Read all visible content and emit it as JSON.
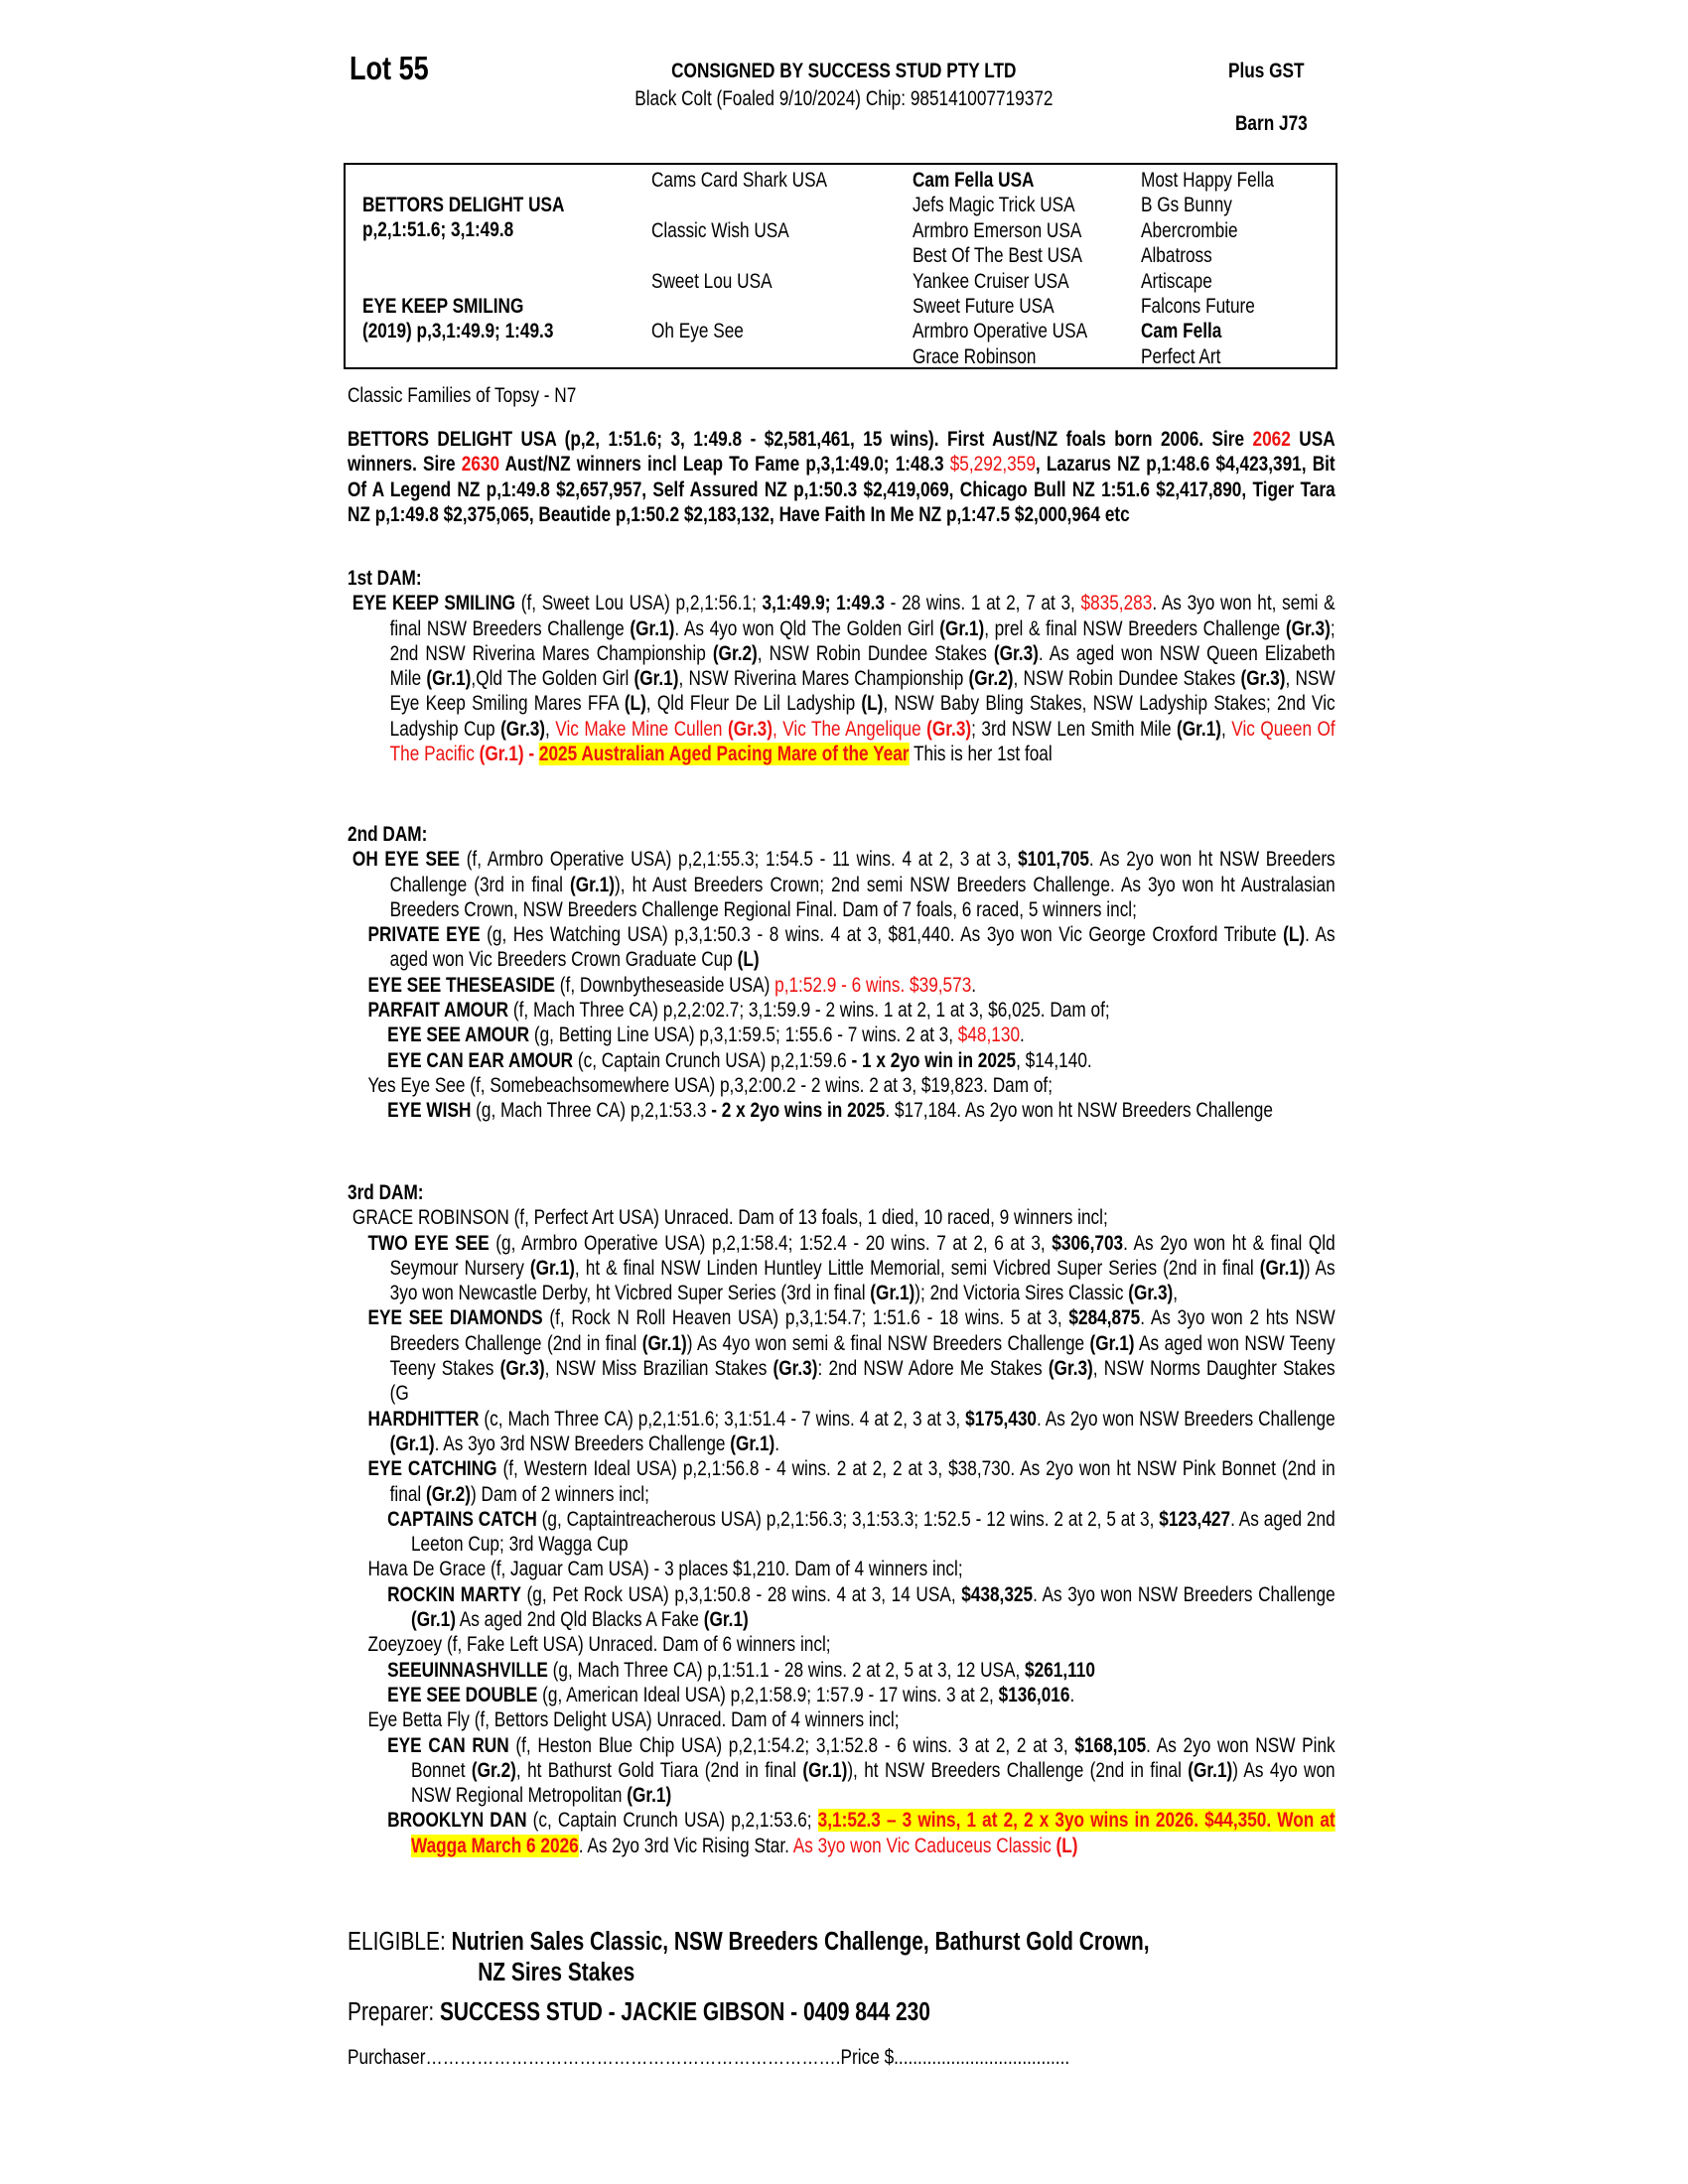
{
  "header": {
    "lot": "Lot 55",
    "consigned": "CONSIGNED BY SUCCESS STUD PTY LTD",
    "description": "Black Colt (Foaled 9/10/2024) Chip: 985141007719372",
    "gst": "Plus GST",
    "barn": "Barn J73"
  },
  "pedigree": {
    "sire_name": "BETTORS DELIGHT USA",
    "sire_record": "p,2,1:51.6; 3,1:49.8",
    "dam_name": "EYE KEEP SMILING",
    "dam_record": "(2019) p,3,1:49.9; 1:49.3",
    "gen2": [
      "Cams Card Shark USA",
      "Classic Wish USA",
      "Sweet Lou USA",
      "Oh Eye See"
    ],
    "gen3": [
      "Cam Fella USA",
      "Jefs Magic Trick USA",
      "Armbro Emerson USA",
      "Best Of The Best USA",
      "Yankee Cruiser USA",
      "Sweet Future USA",
      "Armbro Operative USA",
      "Grace Robinson"
    ],
    "gen4": [
      "Most Happy Fella",
      "B Gs Bunny",
      "Abercrombie",
      "Albatross",
      "Artiscape",
      "Falcons Future",
      "Cam Fella",
      "Perfect Art"
    ]
  },
  "family": "Classic Families of Topsy - N7",
  "sire_para": [
    [
      "BETTORS DELIGHT USA (p,2, 1:51.6; 3, 1:49.8 - $2,581,461, 15 wins). First Aust/NZ foals born 2006. Sire ",
      "b"
    ],
    [
      "2062",
      "b r"
    ],
    [
      " USA winners. Sire ",
      "b"
    ],
    [
      "2630",
      "b r"
    ],
    [
      " Aust/NZ winners incl Leap To Fame p,3,1:49.0; 1:48.3 ",
      "b"
    ],
    [
      "$5,292,359",
      "r"
    ],
    [
      ", Lazarus NZ p,1:48.6 $4,423,391, Bit Of A Legend NZ p,1:49.8 $2,657,957, Self Assured NZ p,1:50.3 $2,419,069, Chicago Bull NZ 1:51.6 $2,417,890,  Tiger Tara NZ p,1:49.8 $2,375,065, Beautide p,1:50.2 $2,183,132, Have Faith In Me NZ p,1:47.5 $2,000,964 etc",
      "b"
    ]
  ],
  "dam1": {
    "heading": "1st DAM:",
    "entries": [
      {
        "level": "entry",
        "runs": [
          [
            "EYE KEEP SMILING",
            "b"
          ],
          [
            " (f, Sweet Lou USA) p,2,1:56.1; ",
            ""
          ],
          [
            "3,1:49.9; 1:49.3",
            "b"
          ],
          [
            " - 28 wins. 1 at 2, 7 at 3, ",
            ""
          ],
          [
            "$835,283",
            "r"
          ],
          [
            ". As 3yo won ht, semi & final NSW Breeders Challenge ",
            ""
          ],
          [
            "(Gr.1)",
            "b"
          ],
          [
            ". As 4yo won Qld The Golden Girl ",
            ""
          ],
          [
            "(Gr.1)",
            "b"
          ],
          [
            ", prel & final NSW Breeders Challenge ",
            ""
          ],
          [
            "(Gr.3)",
            "b"
          ],
          [
            "; 2nd NSW Riverina Mares Championship ",
            ""
          ],
          [
            "(Gr.2)",
            "b"
          ],
          [
            ", NSW Robin Dundee Stakes ",
            ""
          ],
          [
            "(Gr.3)",
            "b"
          ],
          [
            ". As aged won NSW Queen Elizabeth Mile ",
            ""
          ],
          [
            "(Gr.1)",
            "b"
          ],
          [
            ",Qld The Golden Girl ",
            ""
          ],
          [
            "(Gr.1)",
            "b"
          ],
          [
            ", NSW Riverina Mares Championship ",
            ""
          ],
          [
            "(Gr.2)",
            "b"
          ],
          [
            ", NSW Robin Dundee Stakes ",
            ""
          ],
          [
            "(Gr.3)",
            "b"
          ],
          [
            ", NSW Eye Keep Smiling Mares FFA ",
            ""
          ],
          [
            "(L)",
            "b"
          ],
          [
            ", Qld Fleur De Lil Ladyship ",
            ""
          ],
          [
            "(L)",
            "b"
          ],
          [
            ", NSW Baby Bling Stakes, NSW Ladyship Stakes; 2nd Vic Ladyship Cup ",
            ""
          ],
          [
            "(Gr.3)",
            "b"
          ],
          [
            ", ",
            ""
          ],
          [
            "Vic Make Mine Cullen ",
            "r"
          ],
          [
            "(Gr.3)",
            "b r"
          ],
          [
            ", ",
            "r"
          ],
          [
            "Vic The Angelique ",
            "r"
          ],
          [
            "(Gr.3)",
            "b r"
          ],
          [
            "; 3rd NSW Len Smith Mile ",
            ""
          ],
          [
            "(Gr.1)",
            "b"
          ],
          [
            ", ",
            ""
          ],
          [
            "Vic Queen Of The Pacific ",
            "r"
          ],
          [
            "(Gr.1) - ",
            "b r"
          ],
          [
            "2025 Australian Aged Pacing Mare of the Year",
            "b r y"
          ],
          [
            " This is her 1st foal",
            ""
          ]
        ]
      }
    ]
  },
  "dam2": {
    "heading": "2nd DAM:",
    "entries": [
      {
        "level": "entry",
        "runs": [
          [
            "OH EYE SEE",
            "b"
          ],
          [
            " (f, Armbro Operative USA) p,2,1:55.3; 1:54.5 - 11 wins. 4 at 2, 3 at 3, ",
            ""
          ],
          [
            "$101,705",
            "b"
          ],
          [
            ". As 2yo won ht NSW Breeders Challenge (3rd in final ",
            ""
          ],
          [
            "(Gr.1)",
            "b"
          ],
          [
            "), ht Aust Breeders Crown; 2nd semi NSW Breeders Challenge. As 3yo won ht Australasian Breeders Crown, NSW Breeders Challenge Regional Final. Dam of 7 foals, 6 raced, 5 winners incl;",
            ""
          ]
        ]
      },
      {
        "level": "sub",
        "runs": [
          [
            "PRIVATE EYE",
            "b"
          ],
          [
            " (g, Hes Watching USA) p,3,1:50.3 - 8 wins. 4 at 3, $81,440. As 3yo won Vic George Croxford Tribute ",
            ""
          ],
          [
            "(L)",
            "b"
          ],
          [
            ". As aged won Vic Breeders Crown Graduate Cup ",
            ""
          ],
          [
            "(L)",
            "b"
          ]
        ]
      },
      {
        "level": "sub",
        "runs": [
          [
            "EYE SEE THESEASIDE",
            "b"
          ],
          [
            " (f, Downbytheseaside USA) ",
            ""
          ],
          [
            "p,1:52.9 - 6 wins. $39,573",
            "r"
          ],
          [
            ".",
            ""
          ]
        ]
      },
      {
        "level": "sub",
        "runs": [
          [
            "PARFAIT AMOUR",
            "b"
          ],
          [
            " (f, Mach Three CA) p,2,2:02.7; 3,1:59.9 - 2 wins. 1 at 2, 1 at 3, $6,025. Dam of;",
            ""
          ]
        ]
      },
      {
        "level": "subsub",
        "runs": [
          [
            "EYE SEE AMOUR",
            "b"
          ],
          [
            " (g, Betting Line USA) p,3,1:59.5; 1:55.6 - 7 wins. 2 at 3, ",
            ""
          ],
          [
            "$48,130",
            "r"
          ],
          [
            ".",
            ""
          ]
        ]
      },
      {
        "level": "subsub",
        "runs": [
          [
            "EYE CAN EAR AMOUR",
            "b"
          ],
          [
            " (c, Captain Crunch USA) p,2,1:59.6 ",
            ""
          ],
          [
            "- 1 x 2yo win in 2025",
            "b"
          ],
          [
            ", $14,140.",
            ""
          ]
        ]
      },
      {
        "level": "sub",
        "runs": [
          [
            "Yes Eye See (f, Somebeachsomewhere USA) p,3,2:00.2 - 2 wins. 2 at 3, $19,823. Dam of;",
            ""
          ]
        ]
      },
      {
        "level": "subsub",
        "runs": [
          [
            "EYE WISH",
            "b"
          ],
          [
            " (g, Mach Three CA) p,2,1:53.3 ",
            ""
          ],
          [
            "- 2 x 2yo wins in 2025",
            "b"
          ],
          [
            ". $17,184. As 2yo won ht NSW Breeders Challenge",
            ""
          ]
        ]
      }
    ]
  },
  "dam3": {
    "heading": "3rd DAM:",
    "entries": [
      {
        "level": "entry",
        "runs": [
          [
            "GRACE ROBINSON (f, Perfect Art USA) Unraced. Dam of 13 foals, 1 died, 10 raced, 9 winners incl;",
            ""
          ]
        ]
      },
      {
        "level": "sub",
        "runs": [
          [
            "TWO EYE SEE",
            "b"
          ],
          [
            " (g, Armbro Operative USA) p,2,1:58.4; 1:52.4 - 20 wins. 7 at 2, 6 at 3, ",
            ""
          ],
          [
            "$306,703",
            "b"
          ],
          [
            ". As 2yo won ht & final Qld Seymour Nursery ",
            ""
          ],
          [
            "(Gr.1)",
            "b"
          ],
          [
            ", ht & final NSW Linden Huntley Little Memorial, semi Vicbred Super Series (2nd in final ",
            ""
          ],
          [
            "(Gr.1)",
            "b"
          ],
          [
            ") As 3yo won Newcastle Derby, ht Vicbred Super Series (3rd in final ",
            ""
          ],
          [
            "(Gr.1)",
            "b"
          ],
          [
            "); 2nd Victoria Sires Classic ",
            ""
          ],
          [
            "(Gr.3)",
            "b"
          ],
          [
            ",",
            ""
          ]
        ]
      },
      {
        "level": "sub",
        "runs": [
          [
            "EYE SEE DIAMONDS",
            "b"
          ],
          [
            " (f, Rock N Roll Heaven USA) p,3,1:54.7; 1:51.6 - 18 wins. 5 at 3, ",
            ""
          ],
          [
            "$284,875",
            "b"
          ],
          [
            ". As 3yo won 2 hts NSW Breeders Challenge (2nd in final ",
            ""
          ],
          [
            "(Gr.1)",
            "b"
          ],
          [
            ") As 4yo won semi & final NSW Breeders Challenge ",
            ""
          ],
          [
            "(Gr.1)",
            "b"
          ],
          [
            " As aged won NSW Teeny Teeny Stakes ",
            ""
          ],
          [
            "(Gr.3)",
            "b"
          ],
          [
            ", NSW Miss Brazilian Stakes ",
            ""
          ],
          [
            "(Gr.3)",
            "b"
          ],
          [
            ": 2nd NSW Adore Me Stakes ",
            ""
          ],
          [
            "(Gr.3)",
            "b"
          ],
          [
            ", NSW Norms Daughter Stakes (G",
            ""
          ]
        ]
      },
      {
        "level": "sub",
        "runs": [
          [
            "HARDHITTER",
            "b"
          ],
          [
            " (c, Mach Three CA) p,2,1:51.6; 3,1:51.4 - 7 wins. 4 at 2, 3 at 3, ",
            ""
          ],
          [
            "$175,430",
            "b"
          ],
          [
            ". As 2yo won NSW Breeders Challenge ",
            ""
          ],
          [
            "(Gr.1)",
            "b"
          ],
          [
            ". As 3yo 3rd NSW Breeders Challenge ",
            ""
          ],
          [
            "(Gr.1)",
            "b"
          ],
          [
            ".",
            ""
          ]
        ]
      },
      {
        "level": "sub",
        "runs": [
          [
            "EYE CATCHING",
            "b"
          ],
          [
            " (f, Western Ideal USA) p,2,1:56.8 - 4 wins. 2 at 2, 2 at 3, $38,730. As 2yo won ht NSW Pink Bonnet (2nd in final ",
            ""
          ],
          [
            "(Gr.2)",
            "b"
          ],
          [
            ") Dam of 2 winners incl;",
            ""
          ]
        ]
      },
      {
        "level": "subsub",
        "runs": [
          [
            "CAPTAINS CATCH",
            "b"
          ],
          [
            " (g, Captaintreacherous USA) p,2,1:56.3; 3,1:53.3; 1:52.5 - 12 wins. 2 at 2, 5 at 3, ",
            ""
          ],
          [
            "$123,427",
            "b"
          ],
          [
            ". As aged 2nd Leeton Cup; 3rd Wagga Cup",
            ""
          ]
        ]
      },
      {
        "level": "sub",
        "runs": [
          [
            "Hava De Grace (f, Jaguar Cam USA) - 3 places $1,210. Dam of 4 winners incl;",
            ""
          ]
        ]
      },
      {
        "level": "subsub",
        "runs": [
          [
            "ROCKIN MARTY",
            "b"
          ],
          [
            " (g, Pet Rock USA) p,3,1:50.8 - 28 wins. 4 at 3, 14 USA, ",
            ""
          ],
          [
            "$438,325",
            "b"
          ],
          [
            ". As 3yo won NSW Breeders Challenge ",
            ""
          ],
          [
            "(Gr.1)",
            "b"
          ],
          [
            " As aged 2nd Qld Blacks A Fake ",
            ""
          ],
          [
            "(Gr.1)",
            "b"
          ]
        ]
      },
      {
        "level": "sub",
        "runs": [
          [
            "Zoeyzoey (f, Fake Left USA) Unraced. Dam of 6 winners incl;",
            ""
          ]
        ]
      },
      {
        "level": "subsub",
        "runs": [
          [
            "SEEUINNASHVILLE",
            "b"
          ],
          [
            " (g, Mach Three CA) p,1:51.1 - 28 wins. 2 at 2, 5 at 3, 12 USA, ",
            ""
          ],
          [
            "$261,110",
            "b"
          ]
        ]
      },
      {
        "level": "subsub",
        "runs": [
          [
            "EYE SEE DOUBLE",
            "b"
          ],
          [
            " (g, American Ideal USA) p,2,1:58.9; 1:57.9 - 17 wins. 3 at 2, ",
            ""
          ],
          [
            "$136,016",
            "b"
          ],
          [
            ".",
            ""
          ]
        ]
      },
      {
        "level": "sub",
        "runs": [
          [
            "Eye Betta Fly (f, Bettors Delight USA) Unraced. Dam of 4 winners incl;",
            ""
          ]
        ]
      },
      {
        "level": "subsub",
        "runs": [
          [
            "EYE CAN RUN",
            "b"
          ],
          [
            " (f, Heston Blue Chip USA) p,2,1:54.2; 3,1:52.8 - 6 wins. 3 at 2, 2 at 3, ",
            ""
          ],
          [
            "$168,105",
            "b"
          ],
          [
            ". As 2yo won NSW Pink Bonnet ",
            ""
          ],
          [
            "(Gr.2)",
            "b"
          ],
          [
            ", ht Bathurst Gold Tiara (2nd in final ",
            ""
          ],
          [
            "(Gr.1)",
            "b"
          ],
          [
            "), ht NSW Breeders Challenge (2nd in final ",
            ""
          ],
          [
            "(Gr.1)",
            "b"
          ],
          [
            ") As 4yo won NSW Regional Metropolitan ",
            ""
          ],
          [
            "(Gr.1)",
            "b"
          ]
        ]
      },
      {
        "level": "subsub",
        "runs": [
          [
            "BROOKLYN DAN",
            "b"
          ],
          [
            " (c, Captain Crunch USA) p,2,1:53.6; ",
            ""
          ],
          [
            "3,1:52.3 – 3 wins, 1 at 2, 2 x 3yo wins in 2026. $44,350. Won at Wagga March 6 2026",
            "b r y"
          ],
          [
            ". As 2yo 3rd Vic Rising Star. ",
            ""
          ],
          [
            "As 3yo won Vic Caduceus Classic ",
            "r"
          ],
          [
            "(L)",
            "b r"
          ]
        ]
      }
    ]
  },
  "footer": {
    "eligible_label": "ELIGIBLE: ",
    "eligible_line1": "Nutrien Sales Classic, NSW Breeders Challenge, Bathurst Gold Crown,",
    "eligible_line2": "NZ Sires Stakes",
    "preparer_label": "Preparer: ",
    "preparer_value": "SUCCESS STUD - JACKIE GIBSON - 0409 844 230",
    "purchaser": "Purchaser……………………………………………………………….Price $....................................."
  },
  "colors": {
    "highlight": "#ffff00",
    "red": "#ee1111"
  }
}
